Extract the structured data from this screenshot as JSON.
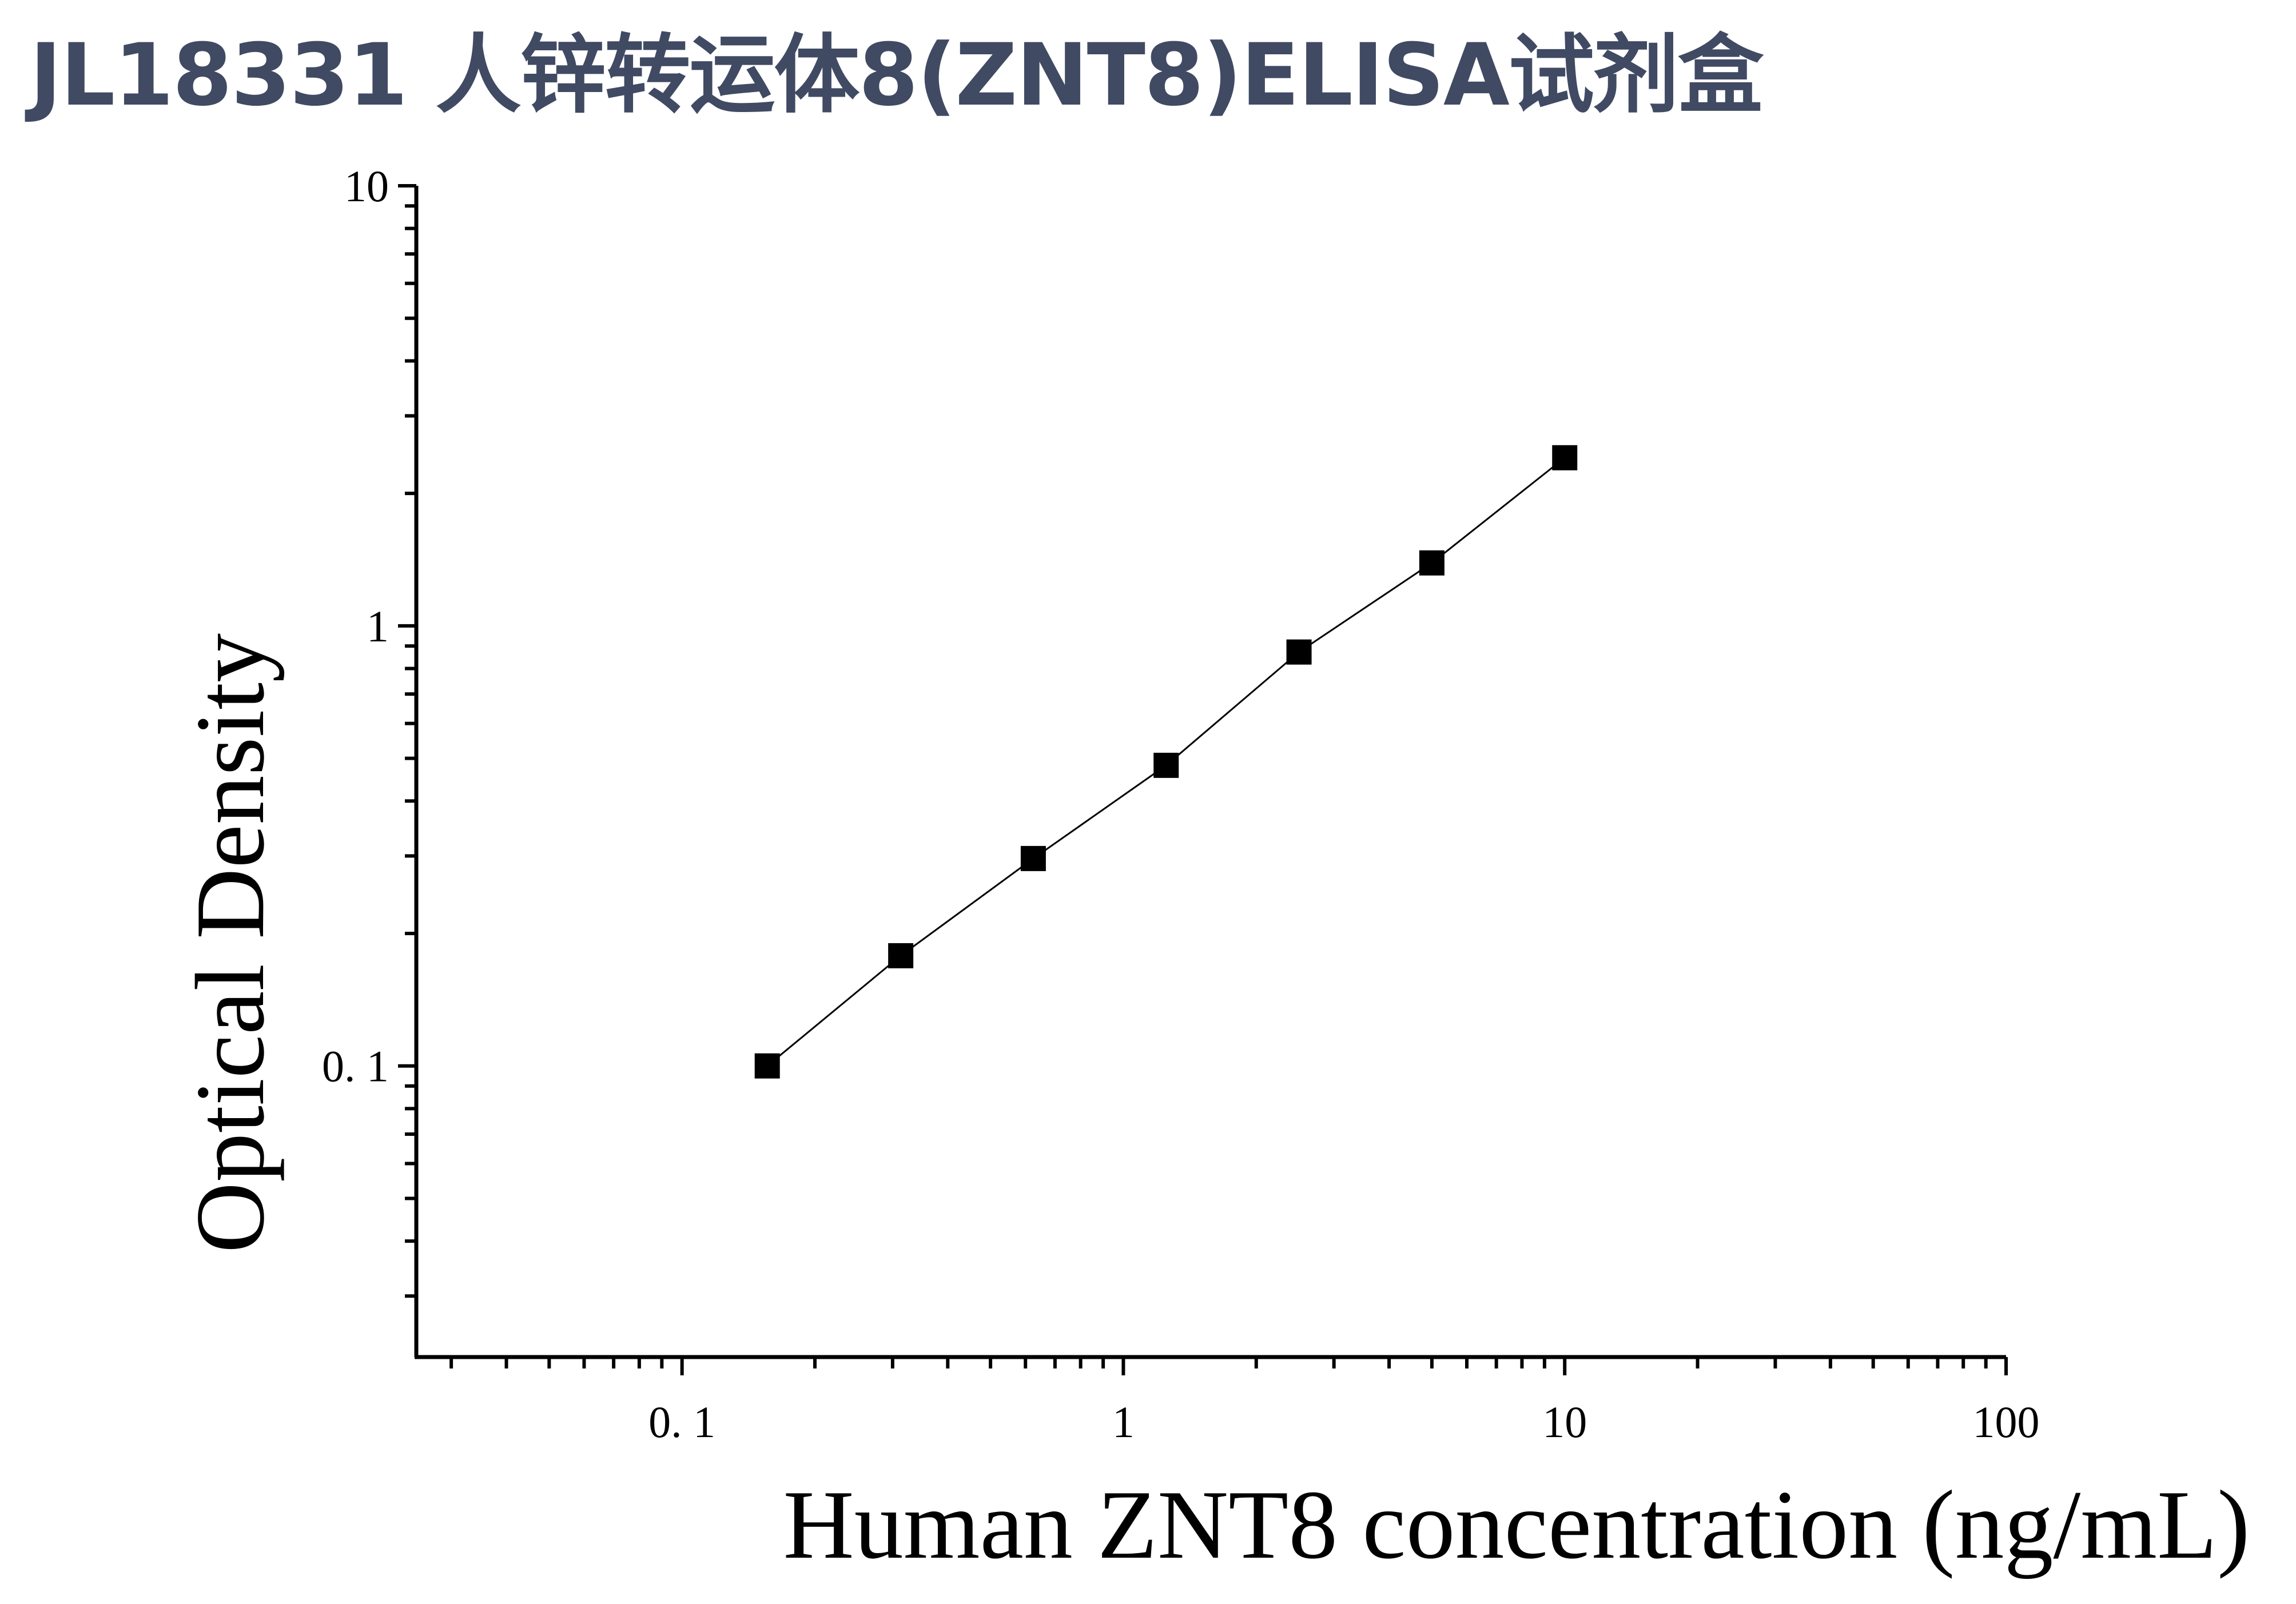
{
  "title": "JL18331 人锌转运体8(ZNT8)ELISA试剂盒",
  "chart_data": {
    "type": "scatter",
    "title": "JL18331 人锌转运体8(ZNT8)ELISA试剂盒",
    "xlabel": "Human ZNT8 concentration (ng/mL)",
    "ylabel": "Optical Density",
    "x_scale": "log",
    "y_scale": "log",
    "xlim": [
      0.025,
      100
    ],
    "ylim": [
      0.0218,
      10
    ],
    "x_ticks": [
      {
        "value": 0.1,
        "label": "0. 1"
      },
      {
        "value": 1,
        "label": "1"
      },
      {
        "value": 10,
        "label": "10"
      },
      {
        "value": 100,
        "label": "100"
      }
    ],
    "y_ticks": [
      {
        "value": 0.1,
        "label": "0. 1"
      },
      {
        "value": 1,
        "label": "1"
      },
      {
        "value": 10,
        "label": "10"
      }
    ],
    "grid": false,
    "series": [
      {
        "marker": "square",
        "color": "#000000",
        "fit_line": true,
        "points": [
          {
            "x": 0.156,
            "y": 0.1
          },
          {
            "x": 0.313,
            "y": 0.178
          },
          {
            "x": 0.625,
            "y": 0.296
          },
          {
            "x": 1.25,
            "y": 0.482
          },
          {
            "x": 2.5,
            "y": 0.872
          },
          {
            "x": 5,
            "y": 1.39
          },
          {
            "x": 10,
            "y": 2.41
          }
        ]
      }
    ]
  }
}
